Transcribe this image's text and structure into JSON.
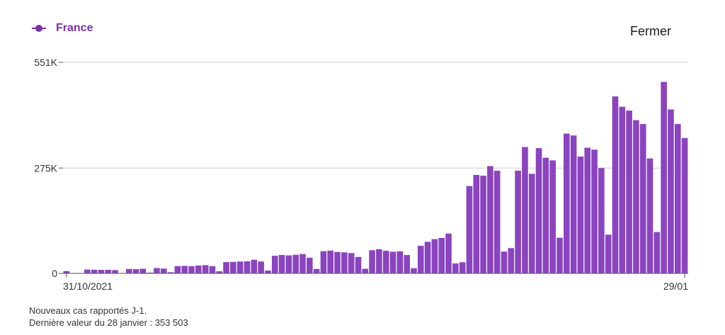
{
  "legend": {
    "series_name": "France"
  },
  "close_label": "Fermer",
  "footnote": {
    "line1": "Nouveaux cas rapportés J-1.",
    "line2": "Dernière valeur du 28 janvier : 353 503"
  },
  "colors": {
    "bar": "#8a44bf",
    "accent": "#7b2fb0",
    "grid": "#d0d0d0",
    "axis": "#555555"
  },
  "chart_data": {
    "type": "bar",
    "series": [
      {
        "name": "France"
      }
    ],
    "x_start": "31/10/2021",
    "x_end": "29/01",
    "y_ticks": [
      {
        "value": 0,
        "label": "0"
      },
      {
        "value": 275000,
        "label": "275K"
      },
      {
        "value": 551000,
        "label": "551K"
      }
    ],
    "ylim": [
      0,
      551000
    ],
    "grid": true,
    "values": [
      6000,
      1000,
      1000,
      10000,
      9500,
      9000,
      9300,
      8600,
      1000,
      11500,
      11000,
      12000,
      2000,
      14000,
      12500,
      3000,
      19000,
      19500,
      19000,
      20500,
      21500,
      19000,
      5500,
      29500,
      30000,
      31000,
      31500,
      35500,
      31000,
      7500,
      46000,
      48000,
      47000,
      48500,
      50500,
      41000,
      11500,
      58000,
      59500,
      56000,
      55000,
      53000,
      43000,
      12000,
      60500,
      63000,
      59000,
      56500,
      57500,
      48000,
      13500,
      72000,
      82500,
      89500,
      92500,
      104000,
      26000,
      29000,
      228000,
      257000,
      255000,
      280000,
      268000,
      57000,
      66000,
      268000,
      330000,
      260000,
      327000,
      302000,
      295000,
      93000,
      365000,
      360000,
      305000,
      328000,
      323000,
      275000,
      101000,
      462000,
      435000,
      425000,
      400000,
      390000,
      300000,
      108000,
      500000,
      428000,
      390000,
      353503
    ]
  }
}
